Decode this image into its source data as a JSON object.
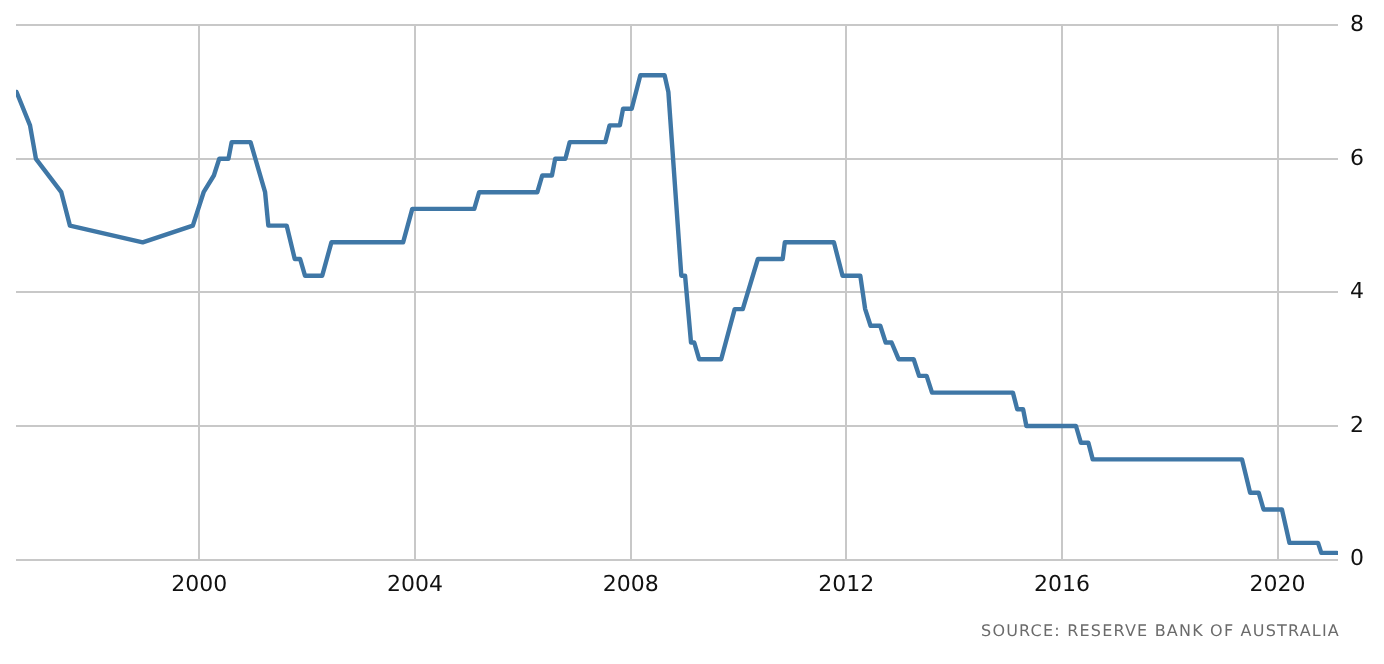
{
  "chart_data": {
    "type": "line",
    "annotations": [
      "SOURCE: RESERVE BANK OF AUSTRALIA"
    ],
    "x": [
      1996.61,
      1996.86,
      1996.97,
      1997.44,
      1997.6,
      1998.95,
      1999.88,
      2000.08,
      2000.27,
      2000.37,
      2000.54,
      2000.6,
      2000.95,
      2001.22,
      2001.28,
      2001.62,
      2001.77,
      2001.87,
      2001.96,
      2002.28,
      2002.45,
      2003.78,
      2003.95,
      2005.1,
      2005.19,
      2006.27,
      2006.36,
      2006.54,
      2006.6,
      2006.79,
      2006.87,
      2007.53,
      2007.61,
      2007.8,
      2007.86,
      2008.02,
      2008.18,
      2008.63,
      2008.7,
      2008.94,
      2009.01,
      2009.12,
      2009.18,
      2009.27,
      2009.68,
      2009.93,
      2010.08,
      2010.36,
      2010.82,
      2010.86,
      2011.77,
      2011.93,
      2012.26,
      2012.35,
      2012.45,
      2012.63,
      2012.73,
      2012.84,
      2012.97,
      2013.25,
      2013.35,
      2013.49,
      2013.59,
      2015.09,
      2015.17,
      2015.28,
      2015.34,
      2016.26,
      2016.35,
      2016.49,
      2016.57,
      2019.34,
      2019.49,
      2019.65,
      2019.74,
      2020.08,
      2020.22,
      2020.75,
      2020.81,
      2021.1
    ],
    "series": [
      {
        "color": "#3f77a6",
        "values": [
          7.0,
          6.5,
          6.0,
          5.5,
          5.0,
          4.75,
          5.0,
          5.5,
          5.75,
          6.0,
          6.0,
          6.25,
          6.25,
          5.5,
          5.0,
          5.0,
          4.5,
          4.5,
          4.25,
          4.25,
          4.75,
          4.75,
          5.25,
          5.25,
          5.5,
          5.5,
          5.75,
          5.75,
          6.0,
          6.0,
          6.25,
          6.25,
          6.5,
          6.5,
          6.75,
          6.75,
          7.25,
          7.25,
          7.0,
          4.25,
          4.25,
          3.25,
          3.25,
          3.0,
          3.0,
          3.75,
          3.75,
          4.5,
          4.5,
          4.75,
          4.75,
          4.25,
          4.25,
          3.75,
          3.5,
          3.5,
          3.25,
          3.25,
          3.0,
          3.0,
          2.75,
          2.75,
          2.5,
          2.5,
          2.25,
          2.25,
          2.0,
          2.0,
          1.75,
          1.75,
          1.5,
          1.5,
          1.0,
          1.0,
          0.75,
          0.75,
          0.25,
          0.25,
          0.1,
          0.1
        ]
      }
    ],
    "xlim": [
      1996.6,
      2021.12
    ],
    "xticks": [
      2000,
      2004,
      2008,
      2012,
      2016,
      2020
    ],
    "ylim": [
      0,
      8
    ],
    "yticks": [
      0,
      2,
      4,
      6,
      8
    ],
    "grid": true,
    "legend": false,
    "marker": "none",
    "line_style": "solid"
  }
}
